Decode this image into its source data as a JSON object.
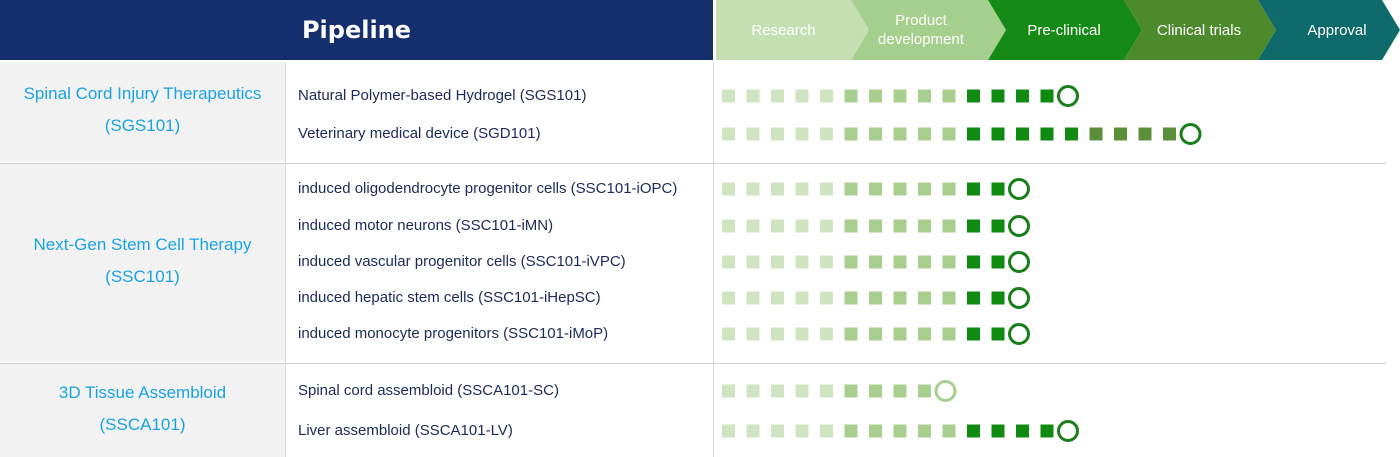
{
  "header": {
    "title": "Pipeline"
  },
  "stages": [
    {
      "label": "Research",
      "color": "#c4e0b3",
      "text_color": "#ffffff"
    },
    {
      "label": "Product development",
      "color": "#a5cf8c",
      "text_color": "#ffffff"
    },
    {
      "label": "Pre-clinical",
      "color": "#168a16",
      "text_color": "#ffffff"
    },
    {
      "label": "Clinical trials",
      "color": "#4d8a2b",
      "text_color": "#ffffff"
    },
    {
      "label": "Approval",
      "color": "#0f6b6b",
      "text_color": "#ffffff"
    }
  ],
  "marker_colors": {
    "research": "#cfe4c0",
    "development": "#a8cf8f",
    "preclinical": "#118a11",
    "clinical": "#5b8f3a",
    "approval": "#0f6b6b",
    "target_dark": "#1a7f1a",
    "target_light": "#a8cf8f"
  },
  "groups": [
    {
      "name": "Spinal Cord Injury Therapeutics",
      "code": "(SGS101)",
      "rows": [
        {
          "label": "Natural Polymer-based Hydrogel (SGS101)",
          "research": 5,
          "development": 5,
          "preclinical": 4,
          "clinical": 0,
          "target": "dark"
        },
        {
          "label": "Veterinary medical device (SGD101)",
          "research": 5,
          "development": 5,
          "preclinical": 5,
          "clinical": 4,
          "target": "dark"
        }
      ]
    },
    {
      "name": "Next-Gen Stem Cell Therapy",
      "code": "(SSC101)",
      "rows": [
        {
          "label": "induced oligodendrocyte progenitor cells (SSC101-iOPC)",
          "research": 5,
          "development": 5,
          "preclinical": 2,
          "clinical": 0,
          "target": "dark"
        },
        {
          "label": "induced motor neurons (SSC101-iMN)",
          "research": 5,
          "development": 5,
          "preclinical": 2,
          "clinical": 0,
          "target": "dark"
        },
        {
          "label": "induced vascular progenitor cells (SSC101-iVPC)",
          "research": 5,
          "development": 5,
          "preclinical": 2,
          "clinical": 0,
          "target": "dark"
        },
        {
          "label": "induced hepatic stem cells (SSC101-iHepSC)",
          "research": 5,
          "development": 5,
          "preclinical": 2,
          "clinical": 0,
          "target": "dark"
        },
        {
          "label": "induced monocyte progenitors (SSC101-iMoP)",
          "research": 5,
          "development": 5,
          "preclinical": 2,
          "clinical": 0,
          "target": "dark"
        }
      ]
    },
    {
      "name": "3D Tissue Assembloid",
      "code": "(SSCA101)",
      "rows": [
        {
          "label": "Spinal cord assembloid (SSCA101-SC)",
          "research": 5,
          "development": 4,
          "preclinical": 0,
          "clinical": 0,
          "target": "light"
        },
        {
          "label": "Liver assembloid (SSCA101-LV)",
          "research": 5,
          "development": 5,
          "preclinical": 4,
          "clinical": 0,
          "target": "dark"
        }
      ]
    }
  ]
}
